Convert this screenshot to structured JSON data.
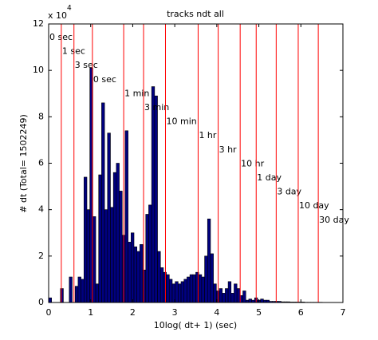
{
  "chart_data": {
    "type": "histogram",
    "title": "tracks ndt all",
    "xlabel": "10log( dt+ 1) (sec)",
    "ylabel": "# dt   (Total= 1502249)",
    "y_multiplier": "x 10",
    "y_multiplier_exp": "4",
    "color": "#00007f",
    "line_color": "#ff0000",
    "xlim": [
      0,
      7
    ],
    "xticks": [
      0,
      1,
      2,
      3,
      4,
      5,
      6,
      7
    ],
    "ylim": [
      0,
      12
    ],
    "yticks": [
      0,
      2,
      4,
      6,
      8,
      10,
      12
    ],
    "bins": [
      0,
      0.07,
      0.14,
      0.21,
      0.28,
      0.35,
      0.42,
      0.49,
      0.56,
      0.63,
      0.7,
      0.77,
      0.84,
      0.91,
      0.98,
      1.05,
      1.12,
      1.19,
      1.26,
      1.33,
      1.4,
      1.47,
      1.54,
      1.61,
      1.68,
      1.75,
      1.82,
      1.89,
      1.96,
      2.03,
      2.1,
      2.17,
      2.24,
      2.31,
      2.38,
      2.45,
      2.52,
      2.59,
      2.66,
      2.73,
      2.8,
      2.87,
      2.94,
      3.01,
      3.08,
      3.15,
      3.22,
      3.29,
      3.36,
      3.43,
      3.5,
      3.57,
      3.64,
      3.71,
      3.78,
      3.85,
      3.92,
      3.99,
      4.06,
      4.13,
      4.2,
      4.27,
      4.34,
      4.41,
      4.48,
      4.55,
      4.62,
      4.69,
      4.76,
      4.83,
      4.9,
      4.97,
      5.04,
      5.11,
      5.18,
      5.25,
      5.32,
      5.39,
      5.46,
      5.53,
      5.6,
      5.67,
      5.74,
      5.81,
      5.88,
      5.95,
      6.02,
      6.09,
      6.16,
      6.23,
      6.3,
      6.37,
      6.44,
      6.51
    ],
    "values": [
      0.2,
      0,
      0,
      0,
      0.6,
      0,
      0,
      1.1,
      0,
      0.7,
      1.1,
      1.0,
      5.4,
      4.0,
      10.1,
      3.7,
      0.8,
      5.5,
      8.6,
      4.0,
      7.3,
      4.1,
      5.6,
      6.0,
      4.8,
      2.9,
      7.4,
      2.6,
      3.0,
      2.4,
      2.2,
      2.5,
      1.4,
      3.8,
      4.2,
      9.3,
      8.9,
      2.2,
      1.5,
      1.3,
      1.2,
      1.0,
      0.8,
      0.9,
      0.8,
      0.9,
      1.0,
      1.1,
      1.2,
      1.2,
      1.3,
      1.2,
      1.1,
      2.0,
      3.6,
      2.1,
      0.8,
      0.5,
      0.6,
      0.4,
      0.6,
      0.9,
      0.4,
      0.8,
      0.6,
      0.3,
      0.5,
      0.1,
      0.15,
      0.1,
      0.2,
      0.1,
      0.15,
      0.1,
      0.1,
      0.05,
      0.05,
      0.05,
      0.05,
      0.03,
      0.03,
      0.03,
      0.02,
      0.02,
      0.02,
      0.02,
      0.02,
      0.01,
      0.01,
      0.01,
      0.01,
      0.01,
      0.01
    ],
    "annotations": [
      {
        "x": 0,
        "label": "0 sec"
      },
      {
        "x": 0.301,
        "label": "1 sec"
      },
      {
        "x": 0.602,
        "label": "3 sec"
      },
      {
        "x": 1.041,
        "label": "0 sec"
      },
      {
        "x": 1.785,
        "label": "1 min"
      },
      {
        "x": 2.258,
        "label": "3 min"
      },
      {
        "x": 2.779,
        "label": "10 min"
      },
      {
        "x": 3.556,
        "label": "1 hr"
      },
      {
        "x": 4.033,
        "label": "3 hr"
      },
      {
        "x": 4.556,
        "label": "10 hr"
      },
      {
        "x": 4.937,
        "label": "1 day"
      },
      {
        "x": 5.413,
        "label": "3 day"
      },
      {
        "x": 5.937,
        "label": "10 day"
      },
      {
        "x": 6.414,
        "label": "30 day"
      }
    ]
  }
}
